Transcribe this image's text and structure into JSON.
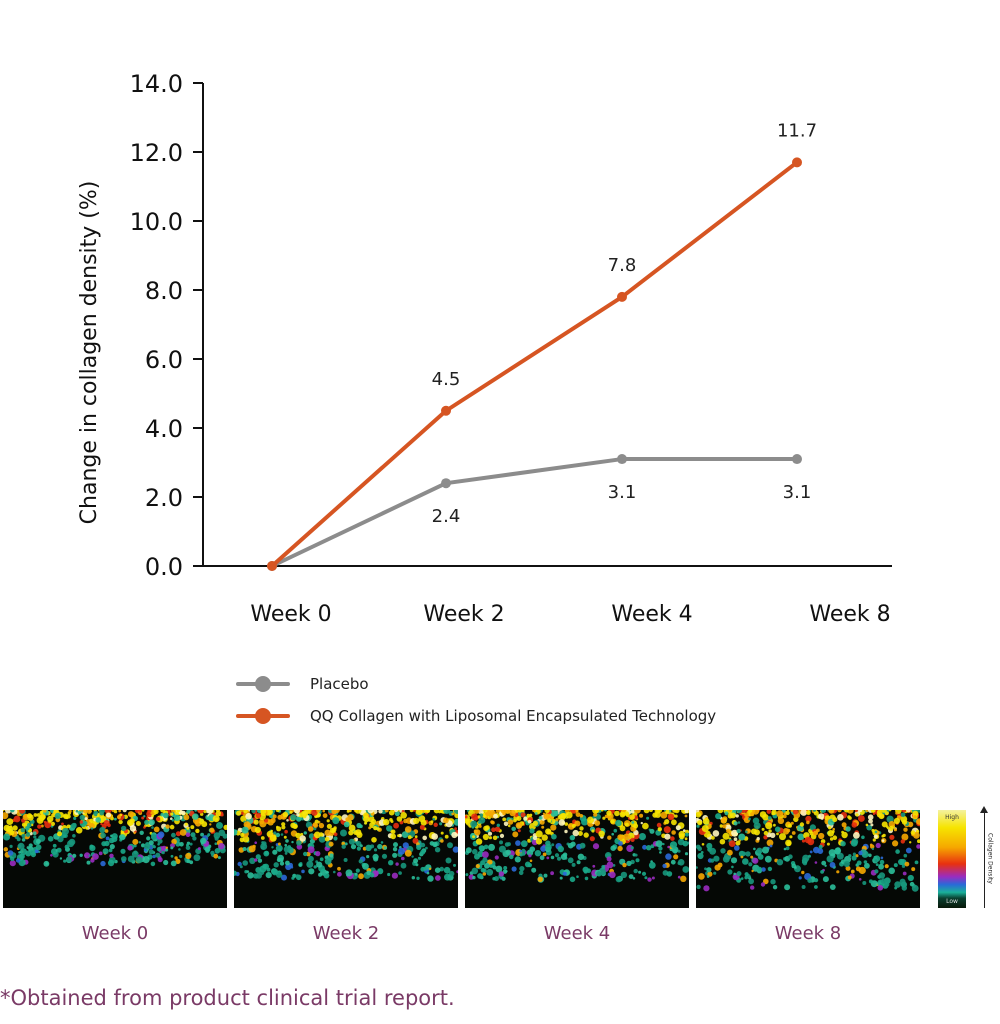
{
  "chart_data": {
    "type": "line",
    "categories": [
      "Week 0",
      "Week 2",
      "Week 4",
      "Week 8"
    ],
    "ylabel": "Change in collagen density (%)",
    "xlabel": "",
    "ylim": [
      0,
      14
    ],
    "yticks": [
      "0.0",
      "2.0",
      "4.0",
      "6.0",
      "8.0",
      "10.0",
      "12.0",
      "14.0"
    ],
    "grid": false,
    "legend_position": "bottom-left",
    "series": [
      {
        "name": "Placebo",
        "color": "#8c8c8c",
        "values": [
          0,
          2.4,
          3.1,
          3.1
        ],
        "labels": [
          "",
          "2.4",
          "3.1",
          "3.1"
        ]
      },
      {
        "name": "QQ Collagen with Liposomal Encapsulated Technology",
        "color": "#d65522",
        "values": [
          0,
          4.5,
          7.8,
          11.7
        ],
        "labels": [
          "",
          "4.5",
          "7.8",
          "11.7"
        ]
      }
    ]
  },
  "images": {
    "week_labels": [
      "Week 0",
      "Week 2",
      "Week 4",
      "Week 8"
    ],
    "scale_high": "High",
    "scale_low": "Low",
    "scale_title": "Collagen Density"
  },
  "footnote": "*Obtained from product clinical trial report."
}
